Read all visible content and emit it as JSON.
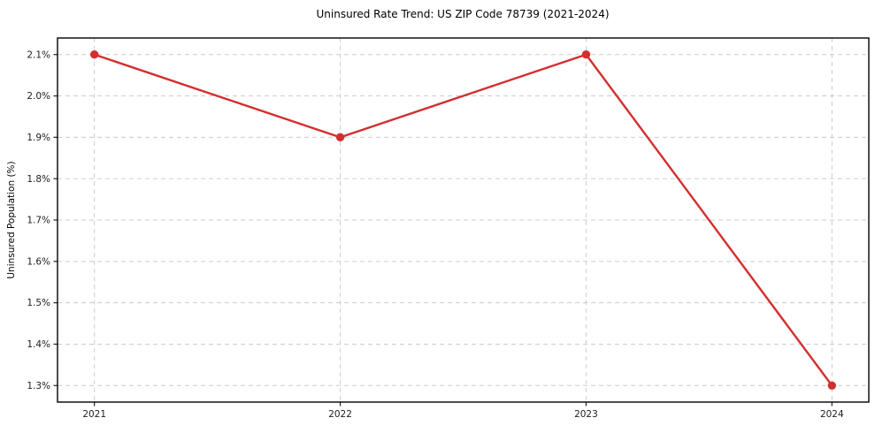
{
  "chart_data": {
    "type": "line",
    "title": "Uninsured Rate Trend: US ZIP Code 78739 (2021-2024)",
    "xlabel": "",
    "ylabel": "Uninsured Population (%)",
    "x": [
      2021,
      2022,
      2023,
      2024
    ],
    "x_tick_labels": [
      "2021",
      "2022",
      "2023",
      "2024"
    ],
    "values": [
      2.1,
      1.9,
      2.1,
      1.3
    ],
    "y_ticks": [
      1.3,
      1.4,
      1.5,
      1.6,
      1.7,
      1.8,
      1.9,
      2.0,
      2.1
    ],
    "y_tick_labels": [
      "1.3%",
      "1.4%",
      "1.5%",
      "1.6%",
      "1.7%",
      "1.8%",
      "1.9%",
      "2.0%",
      "2.1%"
    ],
    "xlim": [
      2020.85,
      2024.15
    ],
    "ylim": [
      1.26,
      2.14
    ],
    "grid": true,
    "grid_style": "dashed",
    "grid_color": "#cccccc",
    "axis_color": "#000000",
    "tick_label_color": "#202020",
    "line_color": "#d32f2f",
    "marker": "circle",
    "legend_position": "none"
  }
}
